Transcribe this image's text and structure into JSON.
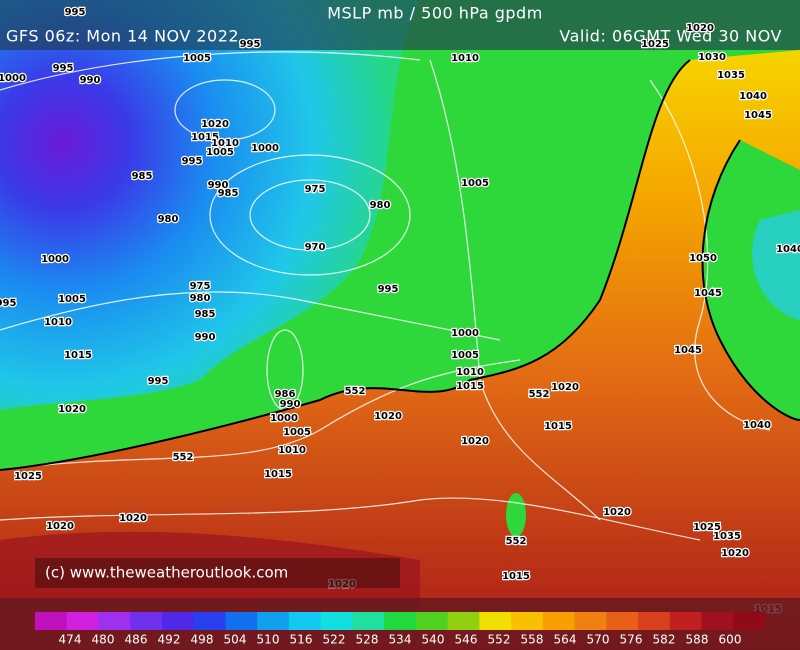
{
  "header": {
    "title": "MSLP mb / 500 hPa gpdm",
    "run": "GFS 06z: Mon 14 NOV 2022",
    "valid": "Valid: 06GMT Wed 30 NOV"
  },
  "copyright": "(c)  www.theweatheroutlook.com",
  "colorbar": {
    "labels": [
      474,
      480,
      486,
      492,
      498,
      504,
      510,
      516,
      522,
      528,
      534,
      540,
      546,
      552,
      558,
      564,
      570,
      576,
      582,
      588,
      600
    ]
  },
  "isobar_labels": [
    "995",
    "995",
    "1005",
    "995",
    "990",
    "1000",
    "1020",
    "1015",
    "1010",
    "1005",
    "1000",
    "995",
    "985",
    "990",
    "985",
    "975",
    "980",
    "980",
    "970",
    "1000",
    "975",
    "980",
    "985",
    "1005",
    "1010",
    "990",
    "1015",
    "995",
    "1020",
    "986",
    "990",
    "1000",
    "1005",
    "1010",
    "552",
    "1015",
    "1025",
    "1020",
    "1020",
    "1010",
    "1030",
    "1035",
    "1040",
    "1045",
    "1005",
    "995",
    "1000",
    "1005",
    "1010",
    "1015",
    "552",
    "1020",
    "1020",
    "552",
    "1015",
    "1020",
    "1050",
    "1045",
    "1045",
    "1040",
    "1040",
    "1020",
    "1025",
    "1035",
    "1020",
    "552",
    "1015",
    "1020",
    "1015",
    "995",
    "1020",
    "1025"
  ]
}
